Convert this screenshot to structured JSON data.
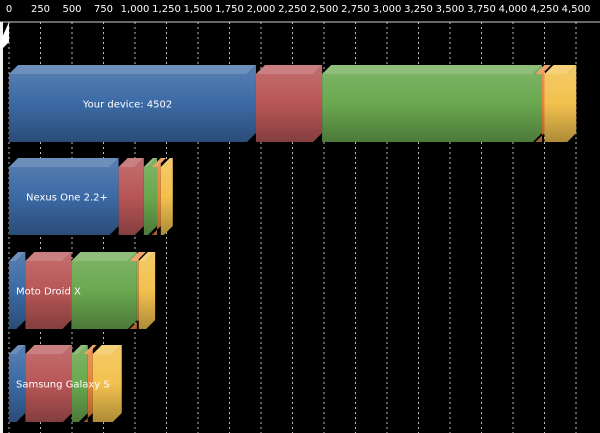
{
  "chart_data": {
    "type": "bar",
    "orientation": "horizontal",
    "stacked": true,
    "grid": true,
    "xlim": [
      0,
      4500
    ],
    "x_ticks": [
      0,
      250,
      500,
      750,
      1000,
      1250,
      1500,
      1750,
      2000,
      2250,
      2500,
      2750,
      3000,
      3250,
      3500,
      3750,
      4000,
      4250,
      4500
    ],
    "x_tick_labels": [
      "0",
      "250",
      "500",
      "750",
      "1,000",
      "1,250",
      "1,500",
      "1,750",
      "2,000",
      "2,250",
      "2,500",
      "2,750",
      "3,000",
      "3,250",
      "3,500",
      "3,750",
      "4,000",
      "4,250",
      "4,500"
    ],
    "categories": [
      "Your device: 4502",
      "Nexus One 2.2+",
      "Moto Droid X",
      "Samsung Galaxy S"
    ],
    "series_colors": [
      "#3c6aa5",
      "#b85656",
      "#6aa84f",
      "#e8843a",
      "#f2c14e"
    ],
    "series": [
      {
        "values": [
          1960,
          870,
          130,
          130
        ]
      },
      {
        "values": [
          525,
          200,
          365,
          370
        ]
      },
      {
        "values": [
          1745,
          105,
          520,
          125
        ]
      },
      {
        "values": [
          20,
          30,
          15,
          40
        ]
      },
      {
        "values": [
          252,
          95,
          130,
          230
        ]
      }
    ]
  }
}
